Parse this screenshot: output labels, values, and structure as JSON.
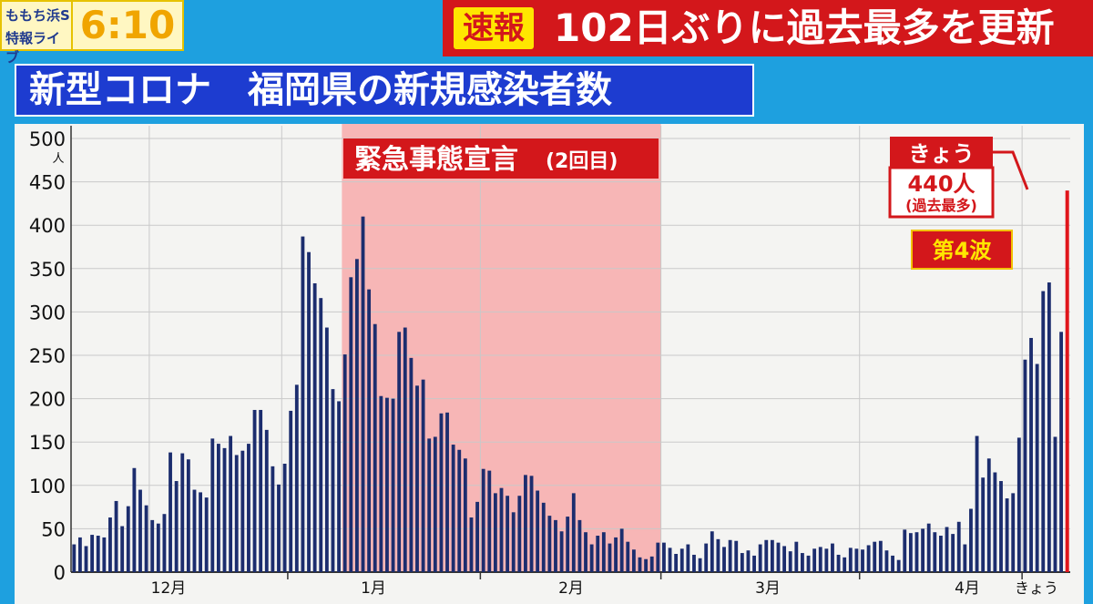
{
  "header": {
    "show_logo_line1": "ももち浜S",
    "show_logo_line2": "特報ライブ",
    "clock": "6:10",
    "breaking_badge": "速報",
    "breaking_headline": "102日ぶりに過去最多を更新"
  },
  "chart_title": "新型コロナ　福岡県の新規感染者数",
  "colors": {
    "bar": "#1c2d6e",
    "highlight_bar": "#e0151b",
    "emergency_band": "#f7b6b6",
    "label_red": "#d3171b"
  },
  "chart_data": {
    "type": "bar",
    "title": "新型コロナ　福岡県の新規感染者数",
    "ylabel": "人",
    "ylim": [
      0,
      500
    ],
    "y_ticks": [
      0,
      50,
      100,
      150,
      200,
      250,
      300,
      350,
      400,
      450,
      500
    ],
    "y_unit": "人",
    "x_ticks": [
      "12月",
      "1月",
      "2月",
      "3月",
      "4月",
      "きょう"
    ],
    "grid": true,
    "values": [
      32,
      40,
      30,
      43,
      42,
      40,
      63,
      82,
      53,
      76,
      120,
      95,
      77,
      60,
      56,
      67,
      138,
      105,
      137,
      130,
      95,
      92,
      86,
      154,
      148,
      143,
      157,
      135,
      140,
      148,
      187,
      187,
      164,
      122,
      101,
      125,
      186,
      216,
      387,
      369,
      333,
      316,
      282,
      211,
      197,
      251,
      340,
      361,
      410,
      326,
      286,
      203,
      201,
      200,
      277,
      282,
      247,
      215,
      222,
      154,
      156,
      183,
      184,
      147,
      141,
      131,
      63,
      81,
      119,
      117,
      91,
      97,
      88,
      69,
      88,
      112,
      111,
      94,
      80,
      65,
      60,
      47,
      64,
      91,
      60,
      46,
      32,
      42,
      46,
      33,
      40,
      50,
      35,
      26,
      17,
      15,
      18,
      34,
      34,
      28,
      21,
      27,
      32,
      20,
      16,
      33,
      47,
      38,
      29,
      37,
      36,
      22,
      25,
      19,
      32,
      37,
      37,
      34,
      30,
      24,
      35,
      22,
      19,
      27,
      29,
      27,
      33,
      20,
      17,
      28,
      27,
      26,
      31,
      35,
      36,
      25,
      19,
      14,
      49,
      45,
      46,
      50,
      56,
      46,
      42,
      52,
      44,
      58,
      32,
      73,
      157,
      109,
      131,
      115,
      105,
      85,
      91,
      155,
      245,
      270,
      240,
      324,
      334,
      156,
      277,
      440
    ],
    "highlight": {
      "index_from_end": 0,
      "value": 440
    },
    "annotations": {
      "emergency_declaration": "緊急事態宣言",
      "emergency_suffix": "(2回目)",
      "today_label": "きょう",
      "today_value": "440人",
      "today_note": "(過去最多)",
      "wave_label": "第4波"
    }
  }
}
